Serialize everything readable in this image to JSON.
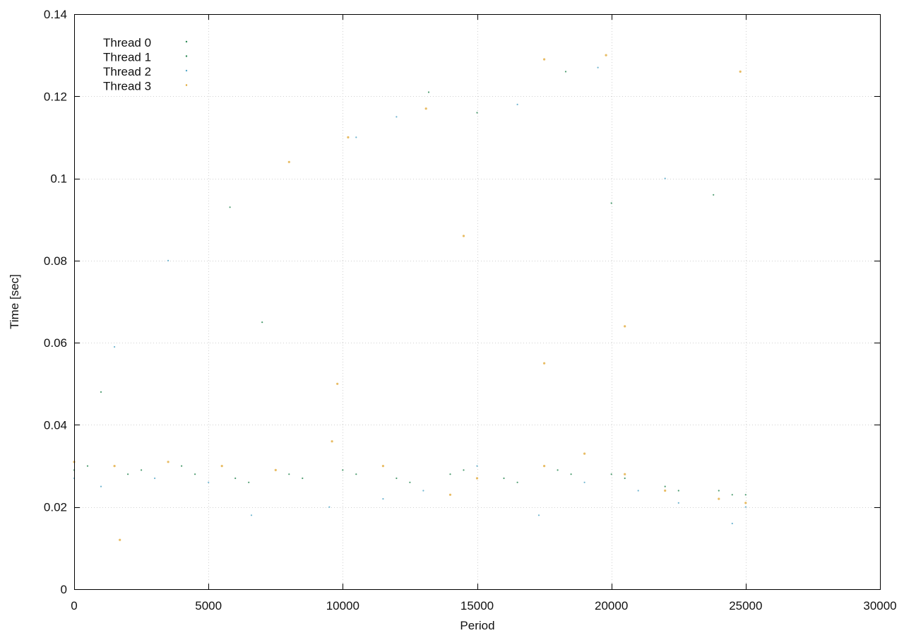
{
  "chart_data": {
    "type": "scatter",
    "title": "",
    "xlabel": "Period",
    "ylabel": "Time [sec]",
    "xlim": [
      0,
      30000
    ],
    "ylim": [
      0,
      0.14
    ],
    "x_ticks": [
      0,
      5000,
      10000,
      15000,
      20000,
      25000,
      30000
    ],
    "y_ticks": [
      0,
      0.02,
      0.04,
      0.06,
      0.08,
      0.1,
      0.12,
      0.14
    ],
    "x_tick_labels": [
      "0",
      "5000",
      "10000",
      "15000",
      "20000",
      "25000",
      "30000"
    ],
    "y_tick_labels": [
      "0",
      "0.02",
      "0.04",
      "0.06",
      "0.08",
      "0.1",
      "0.12",
      "0.14"
    ],
    "grid": true,
    "legend_position": "top-left",
    "series": [
      {
        "name": "Thread 0",
        "color": "#2e8b57",
        "points": [
          [
            0,
            0.029
          ],
          [
            2000,
            0.028
          ],
          [
            4000,
            0.03
          ],
          [
            6000,
            0.027
          ],
          [
            8000,
            0.028
          ],
          [
            10000,
            0.029
          ],
          [
            12000,
            0.027
          ],
          [
            14000,
            0.028
          ],
          [
            16000,
            0.027
          ],
          [
            18000,
            0.029
          ],
          [
            20000,
            0.028
          ],
          [
            22000,
            0.025
          ],
          [
            24000,
            0.024
          ],
          [
            25000,
            0.023
          ],
          [
            15000,
            0.116
          ],
          [
            20000,
            0.094
          ],
          [
            7000,
            0.065
          ],
          [
            1000,
            0.048
          ]
        ]
      },
      {
        "name": "Thread 1",
        "color": "#2e8b57",
        "points": [
          [
            500,
            0.03
          ],
          [
            2500,
            0.029
          ],
          [
            4500,
            0.028
          ],
          [
            6500,
            0.026
          ],
          [
            8500,
            0.027
          ],
          [
            10500,
            0.028
          ],
          [
            12500,
            0.026
          ],
          [
            14500,
            0.029
          ],
          [
            16500,
            0.026
          ],
          [
            18500,
            0.028
          ],
          [
            20500,
            0.027
          ],
          [
            22500,
            0.024
          ],
          [
            24500,
            0.023
          ],
          [
            18300,
            0.126
          ],
          [
            13200,
            0.121
          ],
          [
            23800,
            0.096
          ],
          [
            5800,
            0.093
          ]
        ]
      },
      {
        "name": "Thread 2",
        "color": "#56a8c8",
        "points": [
          [
            0,
            0.027
          ],
          [
            1000,
            0.025
          ],
          [
            3000,
            0.027
          ],
          [
            5000,
            0.026
          ],
          [
            6600,
            0.018
          ],
          [
            9500,
            0.02
          ],
          [
            11500,
            0.022
          ],
          [
            13000,
            0.024
          ],
          [
            15000,
            0.03
          ],
          [
            17300,
            0.018
          ],
          [
            19000,
            0.026
          ],
          [
            21000,
            0.024
          ],
          [
            22500,
            0.021
          ],
          [
            24500,
            0.016
          ],
          [
            25000,
            0.02
          ],
          [
            1500,
            0.059
          ],
          [
            3500,
            0.08
          ],
          [
            10500,
            0.11
          ],
          [
            12000,
            0.115
          ],
          [
            16500,
            0.118
          ],
          [
            19500,
            0.127
          ],
          [
            22000,
            0.1
          ]
        ]
      },
      {
        "name": "Thread 3",
        "color": "#e0a630",
        "points": [
          [
            0,
            0.031
          ],
          [
            1500,
            0.03
          ],
          [
            3500,
            0.031
          ],
          [
            5500,
            0.03
          ],
          [
            7500,
            0.029
          ],
          [
            9600,
            0.036
          ],
          [
            11500,
            0.03
          ],
          [
            14000,
            0.023
          ],
          [
            15000,
            0.027
          ],
          [
            17500,
            0.03
          ],
          [
            19000,
            0.033
          ],
          [
            20500,
            0.028
          ],
          [
            22000,
            0.024
          ],
          [
            24000,
            0.022
          ],
          [
            25000,
            0.021
          ],
          [
            1700,
            0.012
          ],
          [
            8000,
            0.104
          ],
          [
            10200,
            0.11
          ],
          [
            13100,
            0.117
          ],
          [
            14500,
            0.086
          ],
          [
            17500,
            0.129
          ],
          [
            19800,
            0.13
          ],
          [
            24800,
            0.126
          ],
          [
            20500,
            0.064
          ],
          [
            17500,
            0.055
          ],
          [
            9800,
            0.05
          ]
        ]
      }
    ]
  },
  "colors": {
    "thread0": "#2e8b57",
    "thread1": "#2e8b57",
    "thread2": "#56a8c8",
    "thread3": "#e0a630"
  }
}
